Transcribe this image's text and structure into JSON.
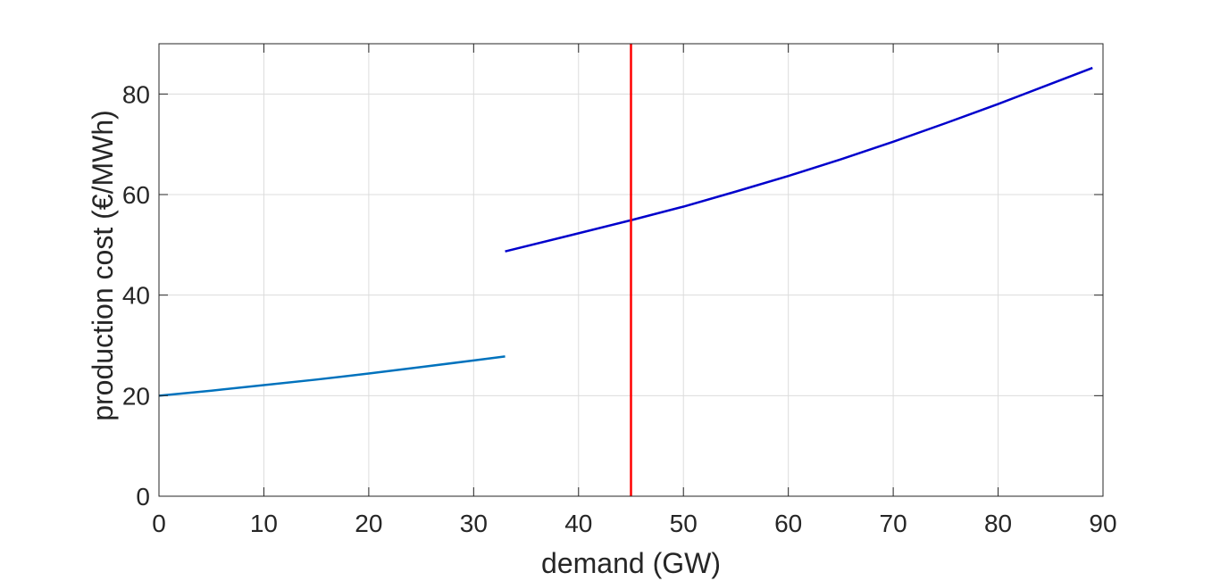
{
  "chart_data": {
    "type": "line",
    "title": "",
    "xlabel": "demand (GW)",
    "ylabel": "production cost (€/MWh)",
    "xlim": [
      0,
      90
    ],
    "ylim": [
      0,
      90
    ],
    "xticks": [
      0,
      10,
      20,
      30,
      40,
      50,
      60,
      70,
      80,
      90
    ],
    "yticks": [
      0,
      20,
      40,
      60,
      80
    ],
    "grid": true,
    "legend": "none",
    "series": [
      {
        "color": "#0072BD",
        "x": [
          0,
          5,
          10,
          15,
          20,
          25,
          30,
          33
        ],
        "y": [
          20.0,
          21.0,
          22.1,
          23.2,
          24.4,
          25.7,
          27.0,
          27.8
        ]
      },
      {
        "color": "#0000CC",
        "x": [
          33,
          40,
          45,
          50,
          55,
          60,
          65,
          70,
          75,
          80,
          85,
          89
        ],
        "y": [
          48.7,
          52.3,
          54.9,
          57.6,
          60.6,
          63.7,
          67.0,
          70.5,
          74.2,
          78.0,
          82.0,
          85.2
        ]
      }
    ],
    "vlines": [
      {
        "x": 45,
        "color": "#FF0000"
      }
    ]
  }
}
